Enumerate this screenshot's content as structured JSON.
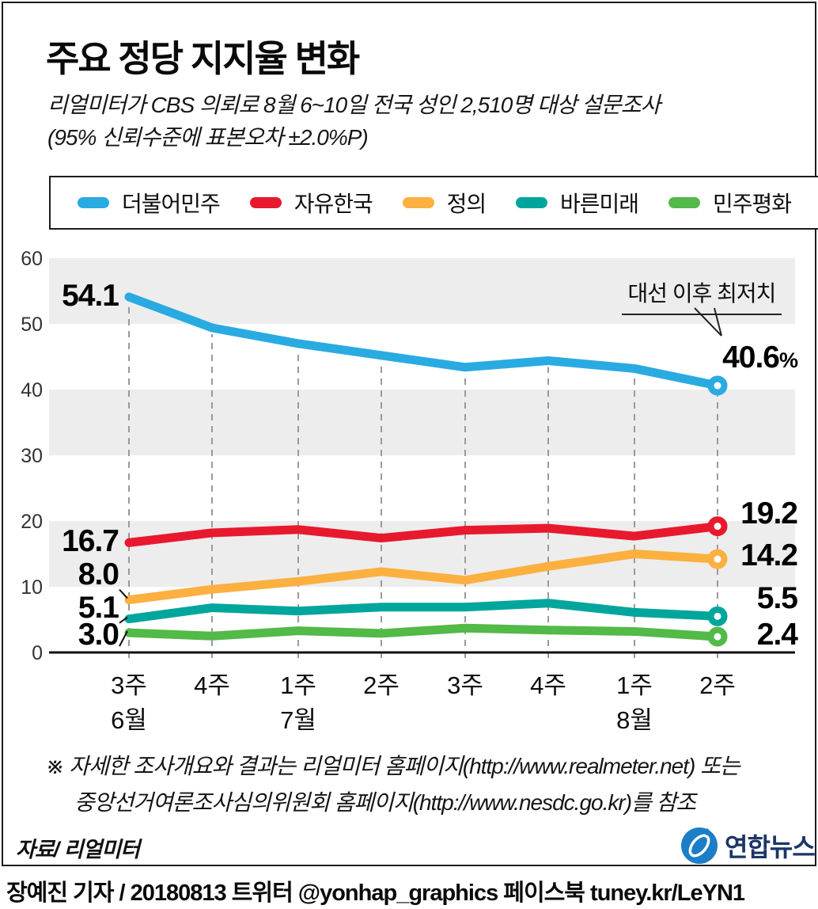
{
  "title": "주요 정당 지지율 변화",
  "subtitle_line1": "리얼미터가 CBS 의뢰로 8월 6~10일 전국 성인 2,510명 대상 설문조사",
  "subtitle_line2": "(95% 신뢰수준에 표본오차 ±2.0%P)",
  "annotation": "대선 이후 최저치",
  "footnote_line1": "※ 자세한 조사개요와 결과는 리얼미터 홈페이지(http://www.realmeter.net) 또는",
  "footnote_line2": "중앙선거여론조사심의위원회 홈페이지(http://www.nesdc.go.kr)를 참조",
  "source": "자료/ 리얼미터",
  "logo_text": "연합뉴스",
  "credit": "장예진 기자 / 20180813 트위터 @yonhap_graphics  페이스북 tuney.kr/LeYN1",
  "colors": {
    "band_gray": "#ededed",
    "dashed_gridline": "#9a9a9a",
    "axis_black": "#111111",
    "logo_blue": "#1c7ec6",
    "logo_navy": "#1b3667"
  },
  "chart_data": {
    "type": "line",
    "x_week_labels": [
      "3주",
      "4주",
      "1주",
      "2주",
      "3주",
      "4주",
      "1주",
      "2주"
    ],
    "x_month_labels": [
      {
        "index": 0,
        "label": "6월"
      },
      {
        "index": 2,
        "label": "7월"
      },
      {
        "index": 6,
        "label": "8월"
      }
    ],
    "ylim": [
      0,
      60
    ],
    "yticks": [
      60,
      50,
      40,
      30,
      20,
      10,
      0
    ],
    "shaded_bands": [
      [
        50,
        60
      ],
      [
        30,
        40
      ],
      [
        10,
        20
      ]
    ],
    "grid": "gray horizontal bands, dashed vertical guide at each week",
    "legend_position": "top boxed",
    "series": [
      {
        "name": "더불어민주",
        "color": "#29abe2",
        "values": [
          54.1,
          49.4,
          47.0,
          45.2,
          43.4,
          44.4,
          43.2,
          40.6
        ],
        "start_label": "54.1",
        "end_label": "40.6",
        "end_label_suffix": "%"
      },
      {
        "name": "자유한국",
        "color": "#e8192e",
        "values": [
          16.7,
          18.2,
          18.7,
          17.4,
          18.6,
          18.9,
          17.7,
          19.2
        ],
        "start_label": "16.7",
        "end_label": "19.2",
        "end_label_suffix": ""
      },
      {
        "name": "정의",
        "color": "#fbb040",
        "values": [
          8.0,
          9.6,
          10.8,
          12.3,
          11.0,
          13.1,
          15.0,
          14.2
        ],
        "start_label": "8.0",
        "end_label": "14.2",
        "end_label_suffix": ""
      },
      {
        "name": "바른미래",
        "color": "#00a69c",
        "values": [
          5.1,
          6.8,
          6.3,
          6.9,
          6.9,
          7.5,
          6.1,
          5.5
        ],
        "start_label": "5.1",
        "end_label": "5.5",
        "end_label_suffix": ""
      },
      {
        "name": "민주평화",
        "color": "#53b948",
        "values": [
          3.0,
          2.5,
          3.3,
          2.9,
          3.7,
          3.4,
          3.2,
          2.4
        ],
        "start_label": "3.0",
        "end_label": "2.4",
        "end_label_suffix": ""
      }
    ]
  }
}
